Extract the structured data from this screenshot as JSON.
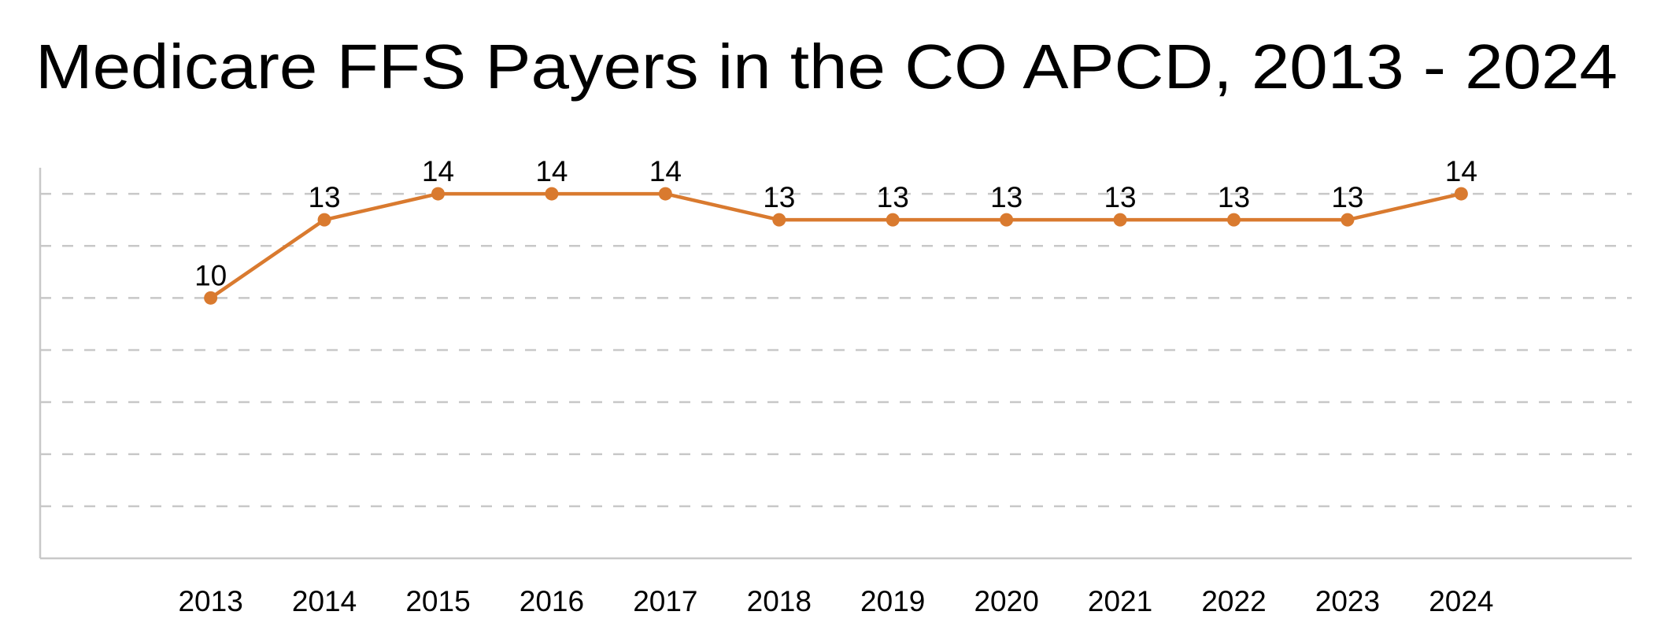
{
  "chart_data": {
    "type": "line",
    "title": "Medicare FFS Payers in the CO APCD, 2013 - 2024",
    "xlabel": "",
    "ylabel": "",
    "categories": [
      "2013",
      "2014",
      "2015",
      "2016",
      "2017",
      "2018",
      "2019",
      "2020",
      "2021",
      "2022",
      "2023",
      "2024"
    ],
    "series": [
      {
        "values": [
          10,
          13,
          14,
          14,
          14,
          13,
          13,
          13,
          13,
          13,
          13,
          14
        ]
      }
    ],
    "ylim": [
      0,
      15
    ],
    "ygrid_step": 2,
    "grid": true,
    "grid_style": "dashed",
    "y_tick_labels_shown": false,
    "data_labels": true,
    "legend": "none",
    "colors": {
      "line": "#D97A2F",
      "grid": "#C8C8C8",
      "axis": "#C8C8C8",
      "text": "#000000"
    }
  }
}
